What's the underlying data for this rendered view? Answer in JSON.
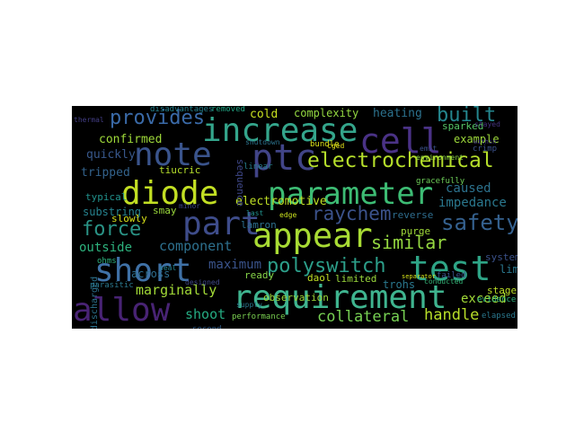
{
  "wordcloud": {
    "background": "#000000",
    "words": [
      {
        "text": "requirement",
        "color": "#3fb48f"
      },
      {
        "text": "increase",
        "color": "#34a58b"
      },
      {
        "text": "parameter",
        "color": "#3dbc74"
      },
      {
        "text": "test",
        "color": "#2ea486"
      },
      {
        "text": "cell",
        "color": "#4a3286"
      },
      {
        "text": "ptc",
        "color": "#414487"
      },
      {
        "text": "appear",
        "color": "#a8db34"
      },
      {
        "text": "part",
        "color": "#3e4c8a"
      },
      {
        "text": "note",
        "color": "#3a548c"
      },
      {
        "text": "diode",
        "color": "#c2df23"
      },
      {
        "text": "short",
        "color": "#3f71a6"
      },
      {
        "text": "allow",
        "color": "#482374"
      },
      {
        "text": "electrochemical",
        "color": "#b5de2b"
      },
      {
        "text": "provides",
        "color": "#3a6aa8"
      },
      {
        "text": "safety",
        "color": "#35618f"
      },
      {
        "text": "built",
        "color": "#24868e"
      },
      {
        "text": "polyswitch",
        "color": "#2c9e89"
      },
      {
        "text": "force",
        "color": "#2a9386"
      },
      {
        "text": "raychem",
        "color": "#3b528b"
      },
      {
        "text": "similar",
        "color": "#95d840"
      },
      {
        "text": "collateral",
        "color": "#77d153"
      },
      {
        "text": "handle",
        "color": "#b8de29"
      },
      {
        "text": "marginally",
        "color": "#a2da37"
      },
      {
        "text": "component",
        "color": "#2d708e"
      },
      {
        "text": "maximum",
        "color": "#3a548c"
      },
      {
        "text": "electromotive",
        "color": "#bfdf25"
      },
      {
        "text": "confirmed",
        "color": "#9fda3a"
      },
      {
        "text": "quickly",
        "color": "#38588c"
      },
      {
        "text": "tripped",
        "color": "#33638d"
      },
      {
        "text": "caused",
        "color": "#2c728e"
      },
      {
        "text": "impedance",
        "color": "#2a788e"
      },
      {
        "text": "outside",
        "color": "#2db27d"
      },
      {
        "text": "substring",
        "color": "#26828e"
      },
      {
        "text": "shoot",
        "color": "#25ab82"
      },
      {
        "text": "exceed",
        "color": "#a2da37"
      },
      {
        "text": "complexity",
        "color": "#93d741"
      },
      {
        "text": "heating",
        "color": "#2c728e"
      },
      {
        "text": "cold",
        "color": "#c8e020"
      },
      {
        "text": "example",
        "color": "#9dd93b"
      },
      {
        "text": "sparked",
        "color": "#56c667"
      },
      {
        "text": "limiting",
        "color": "#2a788e"
      },
      {
        "text": "system",
        "color": "#3b528b"
      },
      {
        "text": "stage",
        "color": "#bddf26"
      },
      {
        "text": "limited",
        "color": "#9bd93c"
      },
      {
        "text": "trohs",
        "color": "#2a788e"
      },
      {
        "text": "purge",
        "color": "#a0da39"
      },
      {
        "text": "reverse",
        "color": "#2e6d8e"
      },
      {
        "text": "across",
        "color": "#2e6e8e"
      },
      {
        "text": "observation",
        "color": "#9dd93b"
      },
      {
        "text": "daol",
        "color": "#c0df25"
      },
      {
        "text": "lamron",
        "color": "#2d708e"
      },
      {
        "text": "tiucric",
        "color": "#b5de2b"
      },
      {
        "text": "smay",
        "color": "#9bd93c"
      },
      {
        "text": "slowly",
        "color": "#d8e219"
      },
      {
        "text": "typical",
        "color": "#21918c"
      },
      {
        "text": "discharged",
        "color": "#2c728e"
      },
      {
        "text": "sequence",
        "color": "#3f4889"
      },
      {
        "text": "ready",
        "color": "#86d549"
      },
      {
        "text": "performance",
        "color": "#7ad151"
      },
      {
        "text": "bundle",
        "color": "#dde318"
      },
      {
        "text": "cged",
        "color": "#e5e419"
      },
      {
        "text": "evidence",
        "color": "#2db27d"
      },
      {
        "text": "elapsed",
        "color": "#2a788e"
      },
      {
        "text": "disadvantages",
        "color": "#26828e"
      },
      {
        "text": "removed",
        "color": "#22a785"
      },
      {
        "text": "seal",
        "color": "#25848e"
      },
      {
        "text": "parasitic",
        "color": "#2a788e"
      },
      {
        "text": "designed",
        "color": "#3f4889"
      },
      {
        "text": "second",
        "color": "#34618d"
      },
      {
        "text": "linear",
        "color": "#277f8e"
      },
      {
        "text": "ohms",
        "color": "#2db27d"
      },
      {
        "text": "failed",
        "color": "#3b528b"
      },
      {
        "text": "conducted",
        "color": "#35b779"
      },
      {
        "text": "environment",
        "color": "#8fd744"
      },
      {
        "text": "gracefully",
        "color": "#6ece58"
      },
      {
        "text": "emit",
        "color": "#3b528b"
      },
      {
        "text": "supply",
        "color": "#2a788e"
      },
      {
        "text": "last",
        "color": "#21918c"
      },
      {
        "text": "edge",
        "color": "#cae11f"
      },
      {
        "text": "crimp",
        "color": "#3b528b"
      },
      {
        "text": "stayed",
        "color": "#46337f"
      },
      {
        "text": "minor",
        "color": "#3f4788"
      },
      {
        "text": "thermal",
        "color": "#433e85"
      },
      {
        "text": "separator",
        "color": "#d5e21a"
      },
      {
        "text": "within",
        "color": "#443a83"
      },
      {
        "text": "shutdown",
        "color": "#2c738e"
      }
    ]
  }
}
